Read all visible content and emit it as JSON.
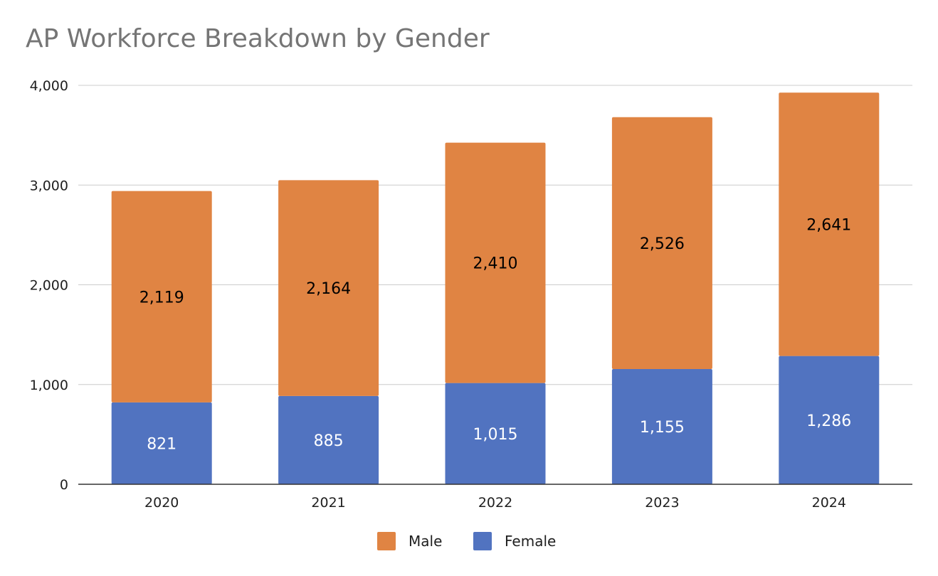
{
  "chart_data": {
    "type": "bar",
    "stacked": true,
    "title": "AP Workforce Breakdown by Gender",
    "xlabel": "",
    "ylabel": "",
    "categories": [
      "2020",
      "2021",
      "2022",
      "2023",
      "2024"
    ],
    "series": [
      {
        "name": "Female",
        "values": [
          821,
          885,
          1015,
          1155,
          1286
        ],
        "color": "#5173c0",
        "label_color": "#ffffff"
      },
      {
        "name": "Male",
        "values": [
          2119,
          2164,
          2410,
          2526,
          2641
        ],
        "color": "#e08443",
        "label_color": "#000000"
      }
    ],
    "data_labels": {
      "Female": [
        "821",
        "885",
        "1,015",
        "1,155",
        "1,286"
      ],
      "Male": [
        "2,119",
        "2,164",
        "2,410",
        "2,526",
        "2,641"
      ]
    },
    "ylim": [
      0,
      4000
    ],
    "yticks": [
      0,
      1000,
      2000,
      3000,
      4000
    ],
    "ytick_labels": [
      "0",
      "1,000",
      "2,000",
      "3,000",
      "4,000"
    ],
    "grid": true,
    "legend": {
      "position": "bottom",
      "items": [
        "Male",
        "Female"
      ]
    }
  }
}
